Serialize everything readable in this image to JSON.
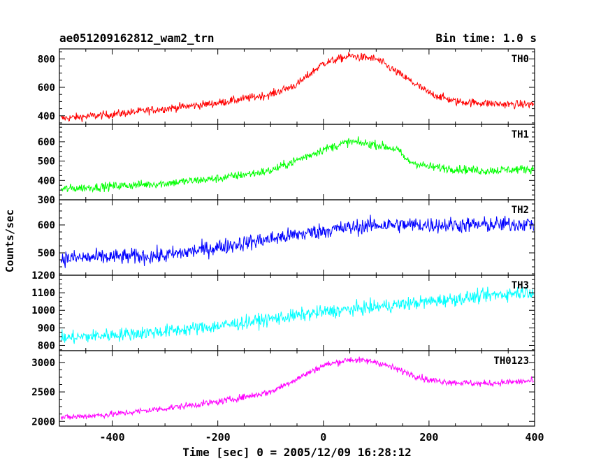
{
  "header": {
    "title": "ae051209162812_wam2_trn",
    "bin_time": "Bin time: 1.0 s"
  },
  "chart_data": {
    "type": "line",
    "xlabel": "Time [sec] 0 = 2005/12/09 16:28:12",
    "ylabel": "Counts/sec",
    "xlim": [
      -500,
      400
    ],
    "x_ticks": [
      -400,
      -200,
      0,
      200,
      400
    ],
    "x_step": 1,
    "series": [
      {
        "name": "TH0",
        "color": "#ff0000",
        "ylim": [
          340,
          870
        ],
        "y_ticks": [
          400,
          600,
          800
        ],
        "trend_x": [
          -500,
          -400,
          -300,
          -200,
          -100,
          -50,
          0,
          50,
          100,
          150,
          200,
          250,
          300,
          350,
          400
        ],
        "trend_y": [
          380,
          410,
          450,
          490,
          550,
          620,
          770,
          820,
          800,
          680,
          560,
          500,
          490,
          480,
          480
        ],
        "noise": 28
      },
      {
        "name": "TH1",
        "color": "#00ff00",
        "ylim": [
          300,
          690
        ],
        "y_ticks": [
          300,
          400,
          500,
          600
        ],
        "trend_x": [
          -500,
          -400,
          -300,
          -200,
          -100,
          0,
          50,
          100,
          140,
          160,
          200,
          300,
          400
        ],
        "trend_y": [
          355,
          370,
          385,
          410,
          450,
          560,
          600,
          585,
          560,
          500,
          470,
          450,
          460
        ],
        "noise": 22
      },
      {
        "name": "TH2",
        "color": "#0000ff",
        "ylim": [
          420,
          690
        ],
        "y_ticks": [
          500,
          600
        ],
        "trend_x": [
          -500,
          -300,
          -200,
          -100,
          0,
          100,
          200,
          300,
          400
        ],
        "trend_y": [
          480,
          490,
          520,
          550,
          580,
          600,
          600,
          600,
          605
        ],
        "noise": 28
      },
      {
        "name": "TH3",
        "color": "#00ffff",
        "ylim": [
          770,
          1200
        ],
        "y_ticks": [
          800,
          900,
          1000,
          1100,
          1200
        ],
        "trend_x": [
          -500,
          -400,
          -300,
          -200,
          -100,
          0,
          100,
          200,
          300,
          400
        ],
        "trend_y": [
          840,
          860,
          880,
          910,
          950,
          990,
          1020,
          1050,
          1080,
          1110
        ],
        "noise": 38
      },
      {
        "name": "TH0123",
        "color": "#ff00ff",
        "ylim": [
          1920,
          3200
        ],
        "y_ticks": [
          2000,
          2500,
          3000
        ],
        "trend_x": [
          -500,
          -400,
          -300,
          -200,
          -100,
          0,
          50,
          100,
          150,
          200,
          250,
          300,
          400
        ],
        "trend_y": [
          2060,
          2120,
          2220,
          2330,
          2500,
          2950,
          3050,
          3010,
          2850,
          2700,
          2660,
          2640,
          2690
        ],
        "noise": 55
      }
    ]
  }
}
